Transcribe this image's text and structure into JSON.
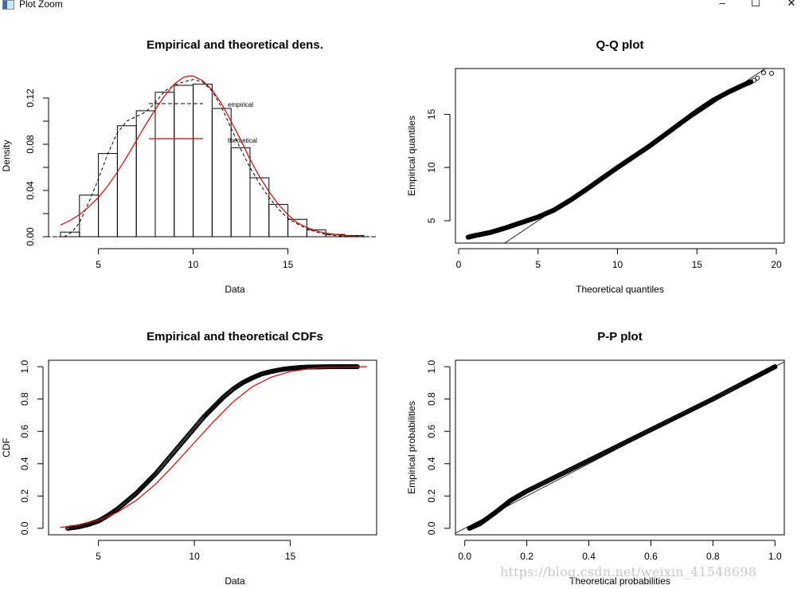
{
  "window": {
    "title": "Plot Zoom",
    "minimize_label": "–",
    "maximize_label": "☐",
    "close_label": "✕",
    "icon": "chart-window-icon"
  },
  "watermark": "https://blog.csdn.net/weixin_41548698",
  "chart_data": [
    {
      "id": "density",
      "type": "bar",
      "title": "Empirical and theoretical dens.",
      "xlabel": "Data",
      "ylabel": "Density",
      "xlim": [
        2.2,
        19.5
      ],
      "ylim": [
        0,
        0.14
      ],
      "xticks": [
        5,
        10,
        15
      ],
      "yticks": [
        0,
        0.02,
        0.04,
        0.06,
        0.08,
        0.1,
        0.12
      ],
      "ytick_labels": [
        "0.00",
        "",
        "0.04",
        "",
        "0.08",
        "",
        "0.12"
      ],
      "frame": false,
      "histogram": {
        "bin_edges": [
          3,
          4,
          5,
          6,
          7,
          8,
          9,
          10,
          11,
          12,
          13,
          14,
          15,
          16,
          17,
          18,
          19
        ],
        "values": [
          0.004,
          0.036,
          0.072,
          0.096,
          0.109,
          0.125,
          0.131,
          0.132,
          0.111,
          0.077,
          0.051,
          0.028,
          0.015,
          0.006,
          0.002,
          0.001
        ]
      },
      "series": [
        {
          "name": "empirical",
          "style": "dashed",
          "color": "#000000",
          "x": [
            2.3,
            3.2,
            3.6,
            4.0,
            4.5,
            5.0,
            5.5,
            6.0,
            6.5,
            7.0,
            7.5,
            8.0,
            8.5,
            9.0,
            9.5,
            10.0,
            10.5,
            11.0,
            11.5,
            12.0,
            12.5,
            13.0,
            13.5,
            14.0,
            14.5,
            15.0,
            15.5,
            16.0,
            16.5,
            17.0,
            17.5,
            18.0,
            19.4
          ],
          "y": [
            0,
            0,
            0.004,
            0.012,
            0.03,
            0.05,
            0.072,
            0.09,
            0.1,
            0.104,
            0.108,
            0.116,
            0.126,
            0.131,
            0.134,
            0.136,
            0.134,
            0.126,
            0.112,
            0.094,
            0.076,
            0.06,
            0.046,
            0.034,
            0.024,
            0.016,
            0.011,
            0.007,
            0.004,
            0.002,
            0.001,
            0.0005,
            0
          ]
        },
        {
          "name": "theoretical",
          "style": "solid",
          "color": "#e00000",
          "x": [
            3.0,
            3.5,
            4.0,
            4.5,
            5.0,
            5.5,
            6.0,
            6.5,
            7.0,
            7.5,
            8.0,
            8.5,
            9.0,
            9.5,
            9.8,
            10.0,
            10.5,
            11.0,
            11.5,
            12.0,
            12.5,
            13.0,
            13.5,
            14.0,
            14.5,
            15.0,
            15.5,
            16.0,
            16.5,
            17.0,
            17.5,
            18.0,
            18.6
          ],
          "y": [
            0.01,
            0.014,
            0.019,
            0.026,
            0.034,
            0.044,
            0.056,
            0.069,
            0.083,
            0.097,
            0.11,
            0.122,
            0.132,
            0.138,
            0.139,
            0.139,
            0.135,
            0.127,
            0.115,
            0.1,
            0.084,
            0.067,
            0.052,
            0.039,
            0.028,
            0.019,
            0.012,
            0.008,
            0.005,
            0.003,
            0.002,
            0.001,
            0.0005
          ]
        }
      ],
      "legend": {
        "placement": "center",
        "entries": [
          {
            "label": "empirical",
            "style": "dashed",
            "color": "#000000"
          },
          {
            "label": "theoretical",
            "style": "solid",
            "color": "#e00000"
          }
        ]
      }
    },
    {
      "id": "qq",
      "type": "scatter",
      "title": "Q-Q plot",
      "xlabel": "Theoretical quantiles",
      "ylabel": "Empirical quantiles",
      "xlim": [
        -0.2,
        20.5
      ],
      "ylim": [
        2.9,
        19.3
      ],
      "xticks": [
        0,
        5,
        10,
        15,
        20
      ],
      "yticks": [
        5,
        10,
        15
      ],
      "frame": true,
      "reference_line": {
        "slope": 1,
        "intercept": 0
      },
      "points_curve": {
        "x": [
          0.6,
          1.0,
          2.0,
          3.0,
          4.0,
          5.0,
          6.0,
          7.0,
          8.0,
          9.0,
          10.0,
          11.0,
          12.0,
          13.0,
          14.0,
          15.0,
          16.0,
          17.0,
          18.0,
          18.4
        ],
        "y": [
          3.45,
          3.6,
          3.9,
          4.35,
          4.85,
          5.35,
          6.0,
          6.9,
          7.9,
          8.95,
          10.0,
          11.0,
          12.0,
          13.1,
          14.2,
          15.3,
          16.3,
          17.1,
          17.8,
          18.05
        ]
      },
      "outliers": {
        "x": [
          18.6,
          18.8,
          19.2,
          19.7
        ],
        "y": [
          18.2,
          18.4,
          18.9,
          18.85
        ]
      }
    },
    {
      "id": "cdf",
      "type": "scatter",
      "title": "Empirical and theoretical CDFs",
      "xlabel": "Data",
      "ylabel": "CDF",
      "xlim": [
        2.4,
        19.5
      ],
      "ylim": [
        -0.04,
        1.04
      ],
      "xticks": [
        5,
        10,
        15
      ],
      "yticks": [
        0,
        0.2,
        0.4,
        0.6,
        0.8,
        1.0
      ],
      "ytick_labels": [
        "0.0",
        "0.2",
        "0.4",
        "0.6",
        "0.8",
        "1.0"
      ],
      "frame": true,
      "series": [
        {
          "name": "empirical",
          "style": "points",
          "color": "#000000",
          "x": [
            3.4,
            4.0,
            4.5,
            5.0,
            5.5,
            6.0,
            6.5,
            7.0,
            7.5,
            8.0,
            8.5,
            9.0,
            9.5,
            10.0,
            10.5,
            11.0,
            11.5,
            12.0,
            12.5,
            13.0,
            13.5,
            14.0,
            14.5,
            15.0,
            15.5,
            16.0,
            16.5,
            17.0,
            17.5,
            18.0,
            18.5
          ],
          "y": [
            0.0,
            0.01,
            0.025,
            0.045,
            0.08,
            0.12,
            0.17,
            0.22,
            0.28,
            0.34,
            0.41,
            0.48,
            0.55,
            0.62,
            0.69,
            0.75,
            0.81,
            0.86,
            0.9,
            0.93,
            0.955,
            0.97,
            0.982,
            0.99,
            0.995,
            0.998,
            0.999,
            1.0,
            1.0,
            1.0,
            1.0
          ]
        },
        {
          "name": "theoretical",
          "style": "solid",
          "color": "#e00000",
          "x": [
            3.0,
            4.0,
            5.0,
            6.0,
            7.0,
            8.0,
            9.0,
            10.0,
            11.0,
            12.0,
            13.0,
            14.0,
            15.0,
            16.0,
            17.0,
            18.0,
            19.0
          ],
          "y": [
            0.005,
            0.02,
            0.05,
            0.1,
            0.175,
            0.275,
            0.4,
            0.53,
            0.66,
            0.78,
            0.875,
            0.935,
            0.97,
            0.988,
            0.996,
            0.999,
            1.0
          ]
        }
      ]
    },
    {
      "id": "pp",
      "type": "scatter",
      "title": "P-P plot",
      "xlabel": "Theoretical probabilities",
      "ylabel": "Empirical probabilities",
      "xlim": [
        -0.03,
        1.03
      ],
      "ylim": [
        -0.04,
        1.04
      ],
      "xticks": [
        0,
        0.2,
        0.4,
        0.6,
        0.8,
        1.0
      ],
      "xtick_labels": [
        "0.0",
        "0.2",
        "0.4",
        "0.6",
        "0.8",
        "1.0"
      ],
      "yticks": [
        0,
        0.2,
        0.4,
        0.6,
        0.8,
        1.0
      ],
      "ytick_labels": [
        "0.0",
        "0.2",
        "0.4",
        "0.6",
        "0.8",
        "1.0"
      ],
      "frame": true,
      "reference_line": {
        "slope": 1,
        "intercept": 0
      },
      "points_curve": {
        "x": [
          0.015,
          0.05,
          0.1,
          0.15,
          0.2,
          0.3,
          0.4,
          0.5,
          0.6,
          0.7,
          0.8,
          0.9,
          0.95,
          1.0
        ],
        "y": [
          0.0,
          0.03,
          0.1,
          0.175,
          0.23,
          0.325,
          0.42,
          0.515,
          0.61,
          0.705,
          0.8,
          0.9,
          0.95,
          1.0
        ]
      }
    }
  ]
}
